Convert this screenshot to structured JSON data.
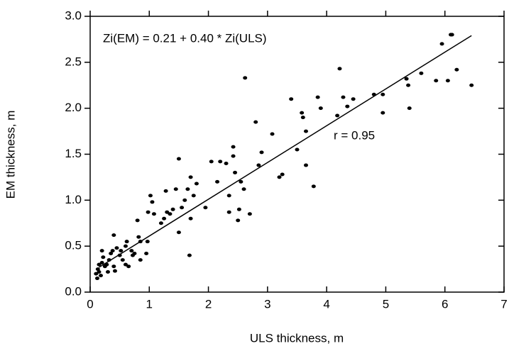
{
  "chart_data": {
    "type": "scatter",
    "xlabel": "ULS thickness, m",
    "ylabel": "EM thickness, m",
    "annotations": [
      "Zi(EM) = 0.21 + 0.40 * Zi(ULS)",
      "r = 0.95"
    ],
    "xlim": [
      0,
      7
    ],
    "ylim": [
      0,
      3
    ],
    "xticks": [
      0,
      1,
      2,
      3,
      4,
      5,
      6,
      7
    ],
    "yticks": [
      {
        "value": 0,
        "label": "0.0"
      },
      0.5,
      {
        "value": 1,
        "label": "1.0"
      },
      1.5,
      {
        "value": 2,
        "label": "2.0"
      },
      2.5,
      {
        "value": 3,
        "label": "3.0"
      }
    ],
    "color": "#000000",
    "x": [
      0.1,
      0.12,
      0.13,
      0.15,
      0.15,
      0.18,
      0.2,
      0.2,
      0.22,
      0.25,
      0.28,
      0.3,
      0.32,
      0.35,
      0.38,
      0.4,
      0.4,
      0.42,
      0.45,
      0.5,
      0.52,
      0.55,
      0.6,
      0.6,
      0.62,
      0.65,
      0.7,
      0.72,
      0.75,
      0.8,
      0.82,
      0.85,
      0.85,
      0.95,
      0.97,
      0.98,
      1.02,
      1.05,
      1.08,
      1.2,
      1.25,
      1.28,
      1.3,
      1.35,
      1.4,
      1.45,
      1.5,
      1.5,
      1.55,
      1.6,
      1.65,
      1.68,
      1.7,
      1.7,
      1.75,
      1.8,
      1.95,
      2.05,
      2.15,
      2.2,
      2.3,
      2.35,
      2.35,
      2.42,
      2.42,
      2.45,
      2.5,
      2.52,
      2.55,
      2.6,
      2.62,
      2.7,
      2.8,
      2.85,
      2.9,
      3.08,
      3.2,
      3.25,
      3.4,
      3.5,
      3.58,
      3.6,
      3.65,
      3.65,
      3.78,
      3.85,
      3.9,
      4.18,
      4.22,
      4.28,
      4.35,
      4.45,
      4.8,
      4.95,
      4.95,
      5.35,
      5.38,
      5.4,
      5.6,
      5.85,
      5.95,
      6.05,
      6.1,
      6.12,
      6.2,
      6.45
    ],
    "values": [
      0.2,
      0.15,
      0.25,
      0.3,
      0.22,
      0.18,
      0.45,
      0.32,
      0.38,
      0.28,
      0.3,
      0.22,
      0.35,
      0.42,
      0.45,
      0.62,
      0.28,
      0.23,
      0.48,
      0.4,
      0.45,
      0.35,
      0.5,
      0.3,
      0.55,
      0.28,
      0.45,
      0.4,
      0.42,
      0.78,
      0.6,
      0.35,
      0.55,
      0.42,
      0.55,
      0.87,
      1.05,
      0.98,
      0.85,
      0.75,
      0.8,
      1.1,
      0.87,
      0.85,
      0.9,
      1.12,
      1.45,
      0.65,
      0.92,
      1.0,
      1.12,
      0.4,
      1.25,
      0.8,
      1.05,
      1.18,
      0.92,
      1.42,
      1.2,
      1.42,
      1.4,
      0.87,
      1.05,
      1.58,
      1.48,
      1.3,
      0.78,
      0.9,
      1.2,
      1.12,
      2.33,
      0.85,
      1.85,
      1.38,
      1.52,
      1.72,
      1.25,
      1.28,
      2.1,
      1.55,
      1.95,
      1.9,
      1.75,
      1.38,
      1.15,
      2.12,
      2.0,
      1.92,
      2.43,
      2.12,
      2.02,
      2.1,
      2.15,
      2.15,
      1.95,
      2.32,
      2.25,
      2.0,
      2.38,
      2.3,
      2.7,
      2.3,
      2.8,
      2.8,
      2.42,
      2.25
    ],
    "fit_line": {
      "x": [
        0.15,
        6.45
      ],
      "y": [
        0.27,
        2.79
      ]
    }
  }
}
